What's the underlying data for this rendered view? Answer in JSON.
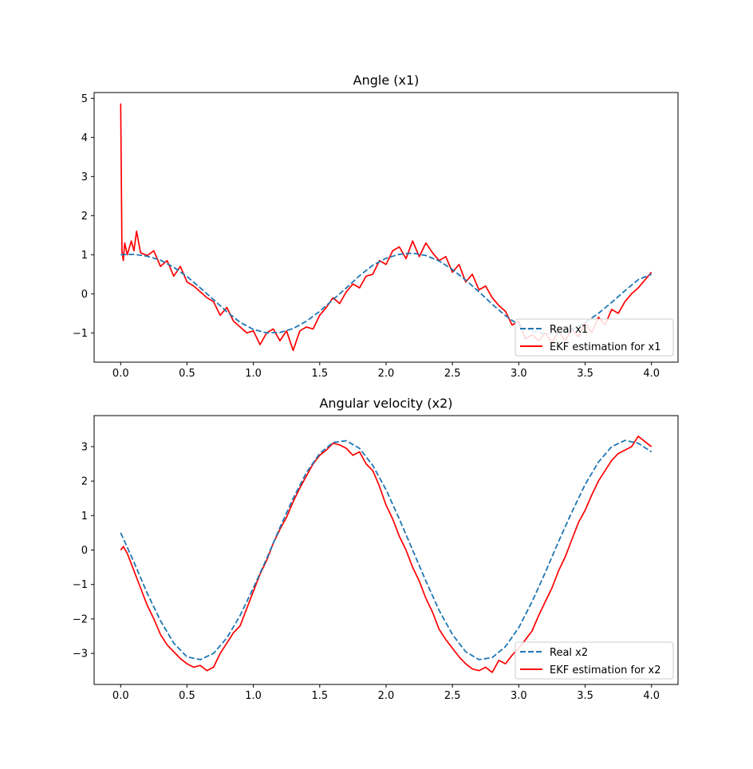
{
  "chart_data": [
    {
      "type": "line",
      "title": "Angle (x1)",
      "xlabel": "",
      "ylabel": "",
      "xlim": [
        -0.2,
        4.2
      ],
      "ylim": [
        -1.75,
        5.15
      ],
      "xticks": [
        0.0,
        0.5,
        1.0,
        1.5,
        2.0,
        2.5,
        3.0,
        3.5,
        4.0
      ],
      "xtick_labels": [
        "0.0",
        "0.5",
        "1.0",
        "1.5",
        "2.0",
        "2.5",
        "3.0",
        "3.5",
        "4.0"
      ],
      "yticks": [
        -1,
        0,
        1,
        2,
        3,
        4,
        5
      ],
      "ytick_labels": [
        "−1",
        "0",
        "1",
        "2",
        "3",
        "4",
        "5"
      ],
      "grid": false,
      "legend_position": "lower-right",
      "series": [
        {
          "name": "Real x1",
          "color": "#1f77b4",
          "style": "dashed",
          "x": [
            0.0,
            0.1,
            0.2,
            0.3,
            0.4,
            0.5,
            0.6,
            0.7,
            0.8,
            0.9,
            1.0,
            1.1,
            1.2,
            1.3,
            1.4,
            1.5,
            1.6,
            1.7,
            1.8,
            1.9,
            2.0,
            2.1,
            2.2,
            2.3,
            2.4,
            2.5,
            2.6,
            2.7,
            2.8,
            2.9,
            3.0,
            3.1,
            3.2,
            3.3,
            3.4,
            3.5,
            3.6,
            3.7,
            3.8,
            3.9,
            4.0
          ],
          "y": [
            1.0,
            1.01,
            0.96,
            0.86,
            0.68,
            0.44,
            0.15,
            -0.15,
            -0.46,
            -0.73,
            -0.91,
            -1.0,
            -0.99,
            -0.89,
            -0.7,
            -0.45,
            -0.15,
            0.15,
            0.46,
            0.73,
            0.91,
            1.01,
            1.04,
            0.98,
            0.84,
            0.62,
            0.35,
            0.05,
            -0.27,
            -0.56,
            -0.8,
            -0.96,
            -1.03,
            -1.02,
            -0.92,
            -0.74,
            -0.5,
            -0.22,
            0.08,
            0.36,
            0.5
          ]
        },
        {
          "name": "EKF estimation for x1",
          "color": "#ff0000",
          "style": "solid",
          "x": [
            0.0,
            0.01,
            0.02,
            0.03,
            0.05,
            0.08,
            0.1,
            0.12,
            0.15,
            0.2,
            0.25,
            0.3,
            0.35,
            0.4,
            0.45,
            0.5,
            0.55,
            0.6,
            0.65,
            0.7,
            0.75,
            0.8,
            0.85,
            0.9,
            0.95,
            1.0,
            1.05,
            1.1,
            1.15,
            1.2,
            1.25,
            1.3,
            1.35,
            1.4,
            1.45,
            1.5,
            1.55,
            1.6,
            1.65,
            1.7,
            1.75,
            1.8,
            1.85,
            1.9,
            1.95,
            2.0,
            2.05,
            2.1,
            2.15,
            2.2,
            2.25,
            2.3,
            2.35,
            2.4,
            2.45,
            2.5,
            2.55,
            2.6,
            2.65,
            2.7,
            2.75,
            2.8,
            2.85,
            2.9,
            2.95,
            3.0,
            3.05,
            3.1,
            3.15,
            3.2,
            3.25,
            3.3,
            3.35,
            3.4,
            3.45,
            3.5,
            3.55,
            3.6,
            3.65,
            3.7,
            3.75,
            3.8,
            3.85,
            3.9,
            3.95,
            4.0
          ],
          "y": [
            4.87,
            1.1,
            0.85,
            1.3,
            1.0,
            1.35,
            1.1,
            1.6,
            1.05,
            0.98,
            1.1,
            0.7,
            0.85,
            0.45,
            0.7,
            0.3,
            0.2,
            0.05,
            -0.1,
            -0.2,
            -0.55,
            -0.35,
            -0.7,
            -0.85,
            -1.0,
            -0.95,
            -1.3,
            -1.0,
            -0.9,
            -1.2,
            -0.95,
            -1.45,
            -0.95,
            -0.85,
            -0.9,
            -0.55,
            -0.35,
            -0.1,
            -0.25,
            0.05,
            0.25,
            0.15,
            0.45,
            0.5,
            0.85,
            0.75,
            1.1,
            1.2,
            0.9,
            1.35,
            0.95,
            1.3,
            1.05,
            0.85,
            0.95,
            0.55,
            0.75,
            0.3,
            0.5,
            0.1,
            0.2,
            -0.1,
            -0.3,
            -0.45,
            -0.8,
            -0.7,
            -1.15,
            -1.05,
            -1.2,
            -1.0,
            -1.25,
            -0.95,
            -1.2,
            -0.9,
            -1.1,
            -0.75,
            -1.0,
            -0.6,
            -0.8,
            -0.4,
            -0.5,
            -0.2,
            0.0,
            0.15,
            0.35,
            0.55
          ]
        }
      ]
    },
    {
      "type": "line",
      "title": "Angular velocity (x2)",
      "xlabel": "",
      "ylabel": "",
      "xlim": [
        -0.2,
        4.2
      ],
      "ylim": [
        -3.9,
        3.9
      ],
      "xticks": [
        0.0,
        0.5,
        1.0,
        1.5,
        2.0,
        2.5,
        3.0,
        3.5,
        4.0
      ],
      "xtick_labels": [
        "0.0",
        "0.5",
        "1.0",
        "1.5",
        "2.0",
        "2.5",
        "3.0",
        "3.5",
        "4.0"
      ],
      "yticks": [
        -3,
        -2,
        -1,
        0,
        1,
        2,
        3
      ],
      "ytick_labels": [
        "−3",
        "−2",
        "−1",
        "0",
        "1",
        "2",
        "3"
      ],
      "grid": false,
      "legend_position": "lower-right",
      "series": [
        {
          "name": "Real x2",
          "color": "#1f77b4",
          "style": "dashed",
          "x": [
            0.0,
            0.1,
            0.2,
            0.3,
            0.4,
            0.5,
            0.6,
            0.7,
            0.8,
            0.9,
            1.0,
            1.1,
            1.2,
            1.3,
            1.4,
            1.5,
            1.6,
            1.7,
            1.8,
            1.9,
            2.0,
            2.1,
            2.2,
            2.3,
            2.4,
            2.5,
            2.6,
            2.7,
            2.8,
            2.9,
            3.0,
            3.1,
            3.2,
            3.3,
            3.4,
            3.5,
            3.6,
            3.7,
            3.8,
            3.9,
            4.0
          ],
          "y": [
            0.5,
            -0.35,
            -1.25,
            -2.05,
            -2.7,
            -3.1,
            -3.18,
            -3.0,
            -2.55,
            -1.9,
            -1.1,
            -0.25,
            0.65,
            1.5,
            2.25,
            2.8,
            3.12,
            3.17,
            2.95,
            2.45,
            1.75,
            0.9,
            0.0,
            -0.9,
            -1.75,
            -2.45,
            -2.95,
            -3.18,
            -3.12,
            -2.8,
            -2.25,
            -1.5,
            -0.65,
            0.25,
            1.1,
            1.9,
            2.55,
            3.0,
            3.18,
            3.1,
            2.85
          ]
        },
        {
          "name": "EKF estimation for x2",
          "color": "#ff0000",
          "style": "solid",
          "x": [
            0.0,
            0.02,
            0.05,
            0.1,
            0.15,
            0.2,
            0.25,
            0.3,
            0.35,
            0.4,
            0.45,
            0.5,
            0.55,
            0.6,
            0.65,
            0.7,
            0.75,
            0.8,
            0.85,
            0.9,
            0.95,
            1.0,
            1.05,
            1.1,
            1.15,
            1.2,
            1.25,
            1.3,
            1.35,
            1.4,
            1.45,
            1.5,
            1.55,
            1.6,
            1.65,
            1.7,
            1.75,
            1.8,
            1.85,
            1.9,
            1.95,
            2.0,
            2.05,
            2.1,
            2.15,
            2.2,
            2.25,
            2.3,
            2.35,
            2.4,
            2.45,
            2.5,
            2.55,
            2.6,
            2.65,
            2.7,
            2.75,
            2.8,
            2.85,
            2.9,
            2.95,
            3.0,
            3.05,
            3.1,
            3.15,
            3.2,
            3.25,
            3.3,
            3.35,
            3.4,
            3.45,
            3.5,
            3.55,
            3.6,
            3.65,
            3.7,
            3.75,
            3.8,
            3.85,
            3.9,
            3.95,
            4.0
          ],
          "y": [
            0.0,
            0.1,
            -0.1,
            -0.6,
            -1.1,
            -1.6,
            -2.0,
            -2.45,
            -2.75,
            -2.95,
            -3.15,
            -3.3,
            -3.4,
            -3.35,
            -3.5,
            -3.4,
            -3.0,
            -2.7,
            -2.4,
            -2.2,
            -1.7,
            -1.2,
            -0.7,
            -0.3,
            0.2,
            0.6,
            0.95,
            1.4,
            1.8,
            2.15,
            2.5,
            2.75,
            2.9,
            3.1,
            3.05,
            2.95,
            2.75,
            2.85,
            2.5,
            2.3,
            1.85,
            1.3,
            0.9,
            0.4,
            0.0,
            -0.5,
            -0.9,
            -1.4,
            -1.8,
            -2.3,
            -2.6,
            -2.85,
            -3.1,
            -3.3,
            -3.45,
            -3.5,
            -3.4,
            -3.55,
            -3.2,
            -3.3,
            -3.05,
            -2.85,
            -2.6,
            -2.35,
            -1.9,
            -1.5,
            -1.1,
            -0.6,
            -0.2,
            0.3,
            0.8,
            1.15,
            1.6,
            2.0,
            2.3,
            2.6,
            2.8,
            2.9,
            3.0,
            3.3,
            3.15,
            3.0
          ]
        }
      ]
    }
  ]
}
